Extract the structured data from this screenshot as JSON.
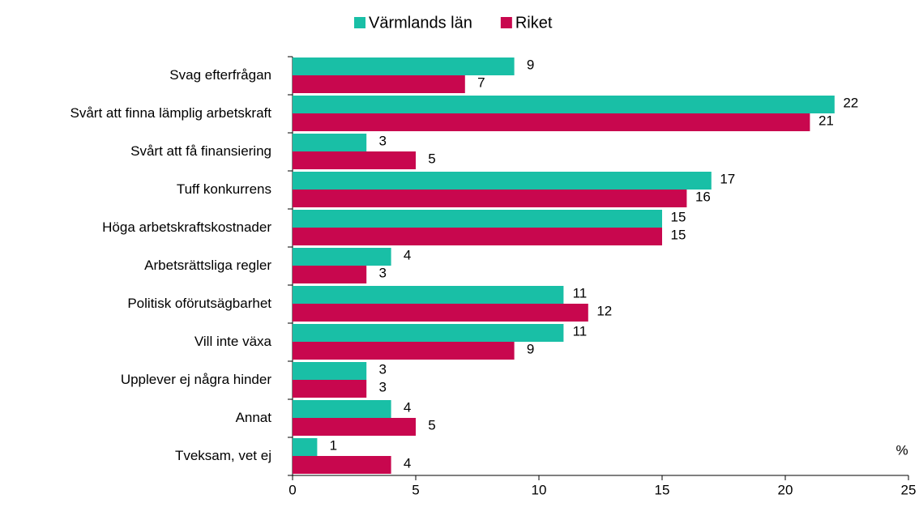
{
  "chart_data": {
    "type": "bar",
    "orientation": "horizontal",
    "categories": [
      "Svag efterfrågan",
      "Svårt att finna lämplig arbetskraft",
      "Svårt att få finansiering",
      "Tuff konkurrens",
      "Höga arbetskraftskostnader",
      "Arbetsrättsliga regler",
      "Politisk oförutsägbarhet",
      "Vill inte växa",
      "Upplever ej några hinder",
      "Annat",
      "Tveksam, vet ej"
    ],
    "series": [
      {
        "name": "Värmlands län",
        "color": "#19bfa6",
        "values": [
          9,
          22,
          3,
          17,
          15,
          4,
          11,
          11,
          3,
          4,
          1
        ]
      },
      {
        "name": "Riket",
        "color": "#c8074e",
        "values": [
          7,
          21,
          5,
          16,
          15,
          3,
          12,
          9,
          3,
          5,
          4
        ]
      }
    ],
    "xlim": [
      0,
      25
    ],
    "xticks": [
      0,
      5,
      10,
      15,
      20,
      25
    ],
    "annotation": "%",
    "legend": "top"
  }
}
